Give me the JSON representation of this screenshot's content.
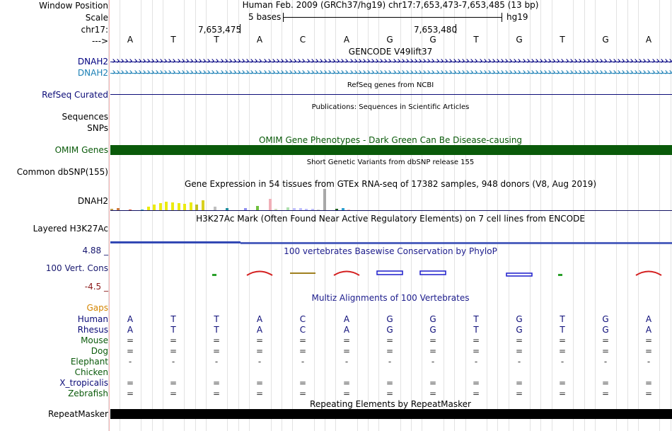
{
  "labels": {
    "window_position": "Window Position",
    "scale": "Scale",
    "chrom": "chr17:",
    "arrow": "--->",
    "dnah2_a": "DNAH2",
    "dnah2_b": "DNAH2",
    "refseq": "RefSeq Curated",
    "sequences": "Sequences",
    "snps": "SNPs",
    "omim": "OMIM Genes",
    "common_dbsnp": "Common dbSNP(155)",
    "gtex_gene": "DNAH2",
    "h3k27ac": "Layered H3K27Ac",
    "cons_max": "4.88 _",
    "cons_label": "100 Vert. Cons",
    "cons_min": "-4.5 _",
    "gaps": "Gaps"
  },
  "colors": {
    "divider": "#f2b2b2",
    "grid": "#e2e2e2",
    "dnah2_a": "#000080",
    "dnah2_b": "#1a7fb5",
    "refseq": "#0c0c78",
    "omim": "#0a5a0a",
    "omim_title": "#0a5a0a",
    "gtex_line": "#141464",
    "h3k27ac": "#3248b4",
    "cons_title": "#1c1c8c",
    "cons_label": "#191970",
    "cons_max": "#191970",
    "cons_min": "#8b1a1a",
    "multiz_title": "#1c1c8c",
    "gaps": "#d48500",
    "human": "#0c0c78",
    "rhesus": "#0c0c78",
    "mouse": "#0a5a0a",
    "dog": "#0a5a0a",
    "elephant": "#0a5a0a",
    "chicken": "#0a5a0a",
    "x_tropicalis": "#0c0c78",
    "zebrafish": "#0a5a0a",
    "repeatmasker": "#000000"
  },
  "header": {
    "position": "Human Feb. 2009 (GRCh37/hg19)   chr17:7,653,473-7,653,485 (13 bp)",
    "scale_text": "5 bases",
    "assembly": "hg19",
    "coord1": "7,653,475",
    "coord2": "7,653,480"
  },
  "bases": [
    "A",
    "T",
    "T",
    "A",
    "C",
    "A",
    "G",
    "G",
    "T",
    "G",
    "T",
    "G",
    "A"
  ],
  "tracks": {
    "gencode_title": "GENCODE V49lift37",
    "refseq_title": "RefSeq genes from NCBI",
    "pubs_title": "Publications: Sequences in Scientific Articles",
    "omim_title": "OMIM Gene Phenotypes - Dark Green Can Be Disease-causing",
    "dbsnp_title": "Short Genetic Variants from dbSNP release 155",
    "gtex_title": "Gene Expression in 54 tissues from GTEx RNA-seq of 17382 samples, 948 donors (V8, Aug 2019)",
    "h3k27ac_title": "H3K27Ac Mark (Often Found Near Active Regulatory Elements) on 7 cell lines from ENCODE",
    "cons_title": "100 vertebrates Basewise Conservation by PhyloP",
    "multiz_title": "Multiz Alignments of 100 Vertebrates",
    "repeat_title": "Repeating Elements by RepeatMasker"
  },
  "gtex_values": [
    2,
    3,
    0,
    1,
    0,
    1,
    5,
    7,
    9,
    11,
    10,
    9,
    8,
    10,
    7,
    13,
    0,
    5,
    0,
    3,
    0,
    0,
    3,
    0,
    6,
    0,
    15,
    2,
    0,
    4,
    3,
    3,
    2,
    2,
    1,
    28,
    0,
    2,
    3,
    1
  ],
  "alignment": {
    "species": [
      "Human",
      "Rhesus",
      "Mouse",
      "Dog",
      "Elephant",
      "Chicken",
      "X_tropicalis",
      "Zebrafish"
    ],
    "rows": {
      "Human": [
        "A",
        "T",
        "T",
        "A",
        "C",
        "A",
        "G",
        "G",
        "T",
        "G",
        "T",
        "G",
        "A"
      ],
      "Rhesus": [
        "A",
        "T",
        "T",
        "A",
        "C",
        "A",
        "G",
        "G",
        "T",
        "G",
        "T",
        "G",
        "A"
      ],
      "Mouse": [
        "=",
        "=",
        "=",
        "=",
        "=",
        "=",
        "=",
        "=",
        "=",
        "=",
        "=",
        "=",
        "="
      ],
      "Dog": [
        "=",
        "=",
        "=",
        "=",
        "=",
        "=",
        "=",
        "=",
        "=",
        "=",
        "=",
        "=",
        "="
      ],
      "Elephant": [
        "-",
        "-",
        "-",
        "-",
        "-",
        "-",
        "-",
        "-",
        "-",
        "-",
        "-",
        "-",
        "-"
      ],
      "Chicken": [
        "",
        "",
        "",
        "",
        "",
        "",
        "",
        "",
        "",
        "",
        "",
        "",
        ""
      ],
      "X_tropicalis": [
        "=",
        "=",
        "=",
        "=",
        "=",
        "=",
        "=",
        "=",
        "=",
        "=",
        "=",
        "=",
        "="
      ],
      "Zebrafish": [
        "=",
        "=",
        "=",
        "=",
        "=",
        "=",
        "=",
        "=",
        "=",
        "=",
        "=",
        "=",
        "="
      ]
    }
  }
}
